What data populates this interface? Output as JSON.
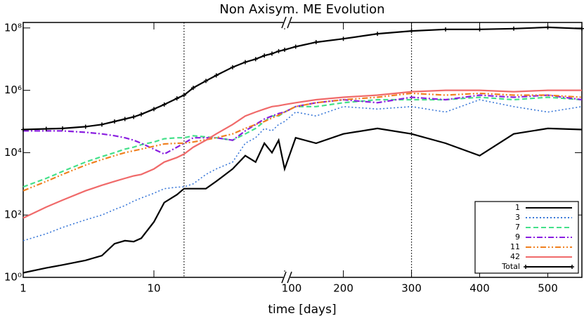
{
  "chart_data": {
    "type": "line",
    "title": "Non Axisym. ME Evolution",
    "x_label": "time [days]",
    "x": [
      1,
      1.5,
      2,
      3,
      4,
      5,
      6,
      7,
      8,
      10,
      12,
      15,
      17,
      20,
      25,
      30,
      40,
      50,
      60,
      70,
      80,
      90,
      100,
      130,
      160,
      200,
      250,
      300,
      350,
      400,
      450,
      500,
      550
    ],
    "xlim": [
      1,
      100
    ],
    "xscale": "log",
    "xticks": [
      1,
      10,
      100
    ],
    "x2lim": [
      120,
      550
    ],
    "x2ticks": [
      200,
      300,
      400,
      500
    ],
    "ylim": [
      1,
      150000000
    ],
    "yscale": "log",
    "yticks": [
      {
        "value": 1,
        "label": "10⁰"
      },
      {
        "value": 100,
        "label": "10²"
      },
      {
        "value": 10000,
        "label": "10⁴"
      },
      {
        "value": 1000000,
        "label": "10⁶"
      },
      {
        "value": 100000000,
        "label": "10⁸"
      }
    ],
    "vlines": [
      17,
      300
    ],
    "legend": "lower right",
    "series": [
      {
        "name": "1",
        "color": "#000000",
        "style": "solid",
        "values": [
          1.4,
          2,
          2.5,
          3.5,
          5,
          12,
          15,
          14,
          18,
          60,
          250,
          450,
          700,
          700,
          700,
          1200,
          3000,
          8000,
          5000,
          20000,
          10000,
          25000,
          3000,
          30000,
          20000,
          40000,
          60000,
          40000,
          20000,
          8000,
          40000,
          60000,
          55000
        ]
      },
      {
        "name": "3",
        "color": "#3a78d8",
        "style": "dotted",
        "values": [
          15,
          25,
          40,
          70,
          100,
          150,
          200,
          280,
          350,
          500,
          700,
          780,
          800,
          1000,
          2000,
          3000,
          5000,
          20000,
          30000,
          60000,
          50000,
          80000,
          100000,
          200000,
          150000,
          300000,
          250000,
          300000,
          200000,
          500000,
          300000,
          200000,
          300000
        ]
      },
      {
        "name": "7",
        "color": "#44e08a",
        "style": "dashed",
        "values": [
          800,
          1500,
          2500,
          5000,
          7500,
          10000,
          13000,
          15000,
          18000,
          22000,
          28000,
          30000,
          30000,
          35000,
          32000,
          30000,
          25000,
          40000,
          60000,
          100000,
          150000,
          150000,
          200000,
          300000,
          300000,
          400000,
          500000,
          500000,
          500000,
          600000,
          500000,
          600000,
          500000
        ]
      },
      {
        "name": "9",
        "color": "#8a1ee0",
        "style": "dashdot",
        "values": [
          50000,
          50000,
          50000,
          45000,
          40000,
          35000,
          30000,
          25000,
          20000,
          13000,
          9000,
          15000,
          20000,
          30000,
          30000,
          30000,
          25000,
          50000,
          80000,
          120000,
          150000,
          180000,
          200000,
          300000,
          400000,
          500000,
          400000,
          600000,
          500000,
          700000,
          600000,
          700000,
          500000
        ]
      },
      {
        "name": "11",
        "color": "#f08020",
        "style": "dashdotdot",
        "values": [
          600,
          1200,
          2000,
          4000,
          6000,
          8000,
          10000,
          11500,
          13000,
          16000,
          19000,
          20000,
          20000,
          22000,
          26000,
          30000,
          40000,
          60000,
          80000,
          100000,
          130000,
          160000,
          200000,
          300000,
          400000,
          500000,
          600000,
          800000,
          700000,
          800000,
          700000,
          700000,
          600000
        ]
      },
      {
        "name": "42",
        "color": "#f06a6a",
        "style": "solid",
        "values": [
          80,
          180,
          300,
          600,
          900,
          1200,
          1500,
          1800,
          2000,
          3000,
          5000,
          7000,
          9000,
          15000,
          25000,
          40000,
          80000,
          150000,
          200000,
          250000,
          300000,
          320000,
          350000,
          400000,
          500000,
          600000,
          700000,
          900000,
          1000000,
          1000000,
          900000,
          1000000,
          1000000
        ]
      },
      {
        "name": "Total",
        "color": "#000000",
        "style": "solid",
        "markers": true,
        "values": [
          55000,
          58000,
          60000,
          68000,
          80000,
          100000,
          120000,
          140000,
          170000,
          250000,
          350000,
          550000,
          700000,
          1200000,
          2000000,
          3000000,
          5500000,
          8000000,
          10000000,
          13000000,
          15000000,
          18000000,
          20000000,
          25000000,
          35000000,
          45000000,
          65000000,
          80000000,
          90000000,
          90000000,
          95000000,
          105000000,
          95000000
        ]
      }
    ]
  }
}
